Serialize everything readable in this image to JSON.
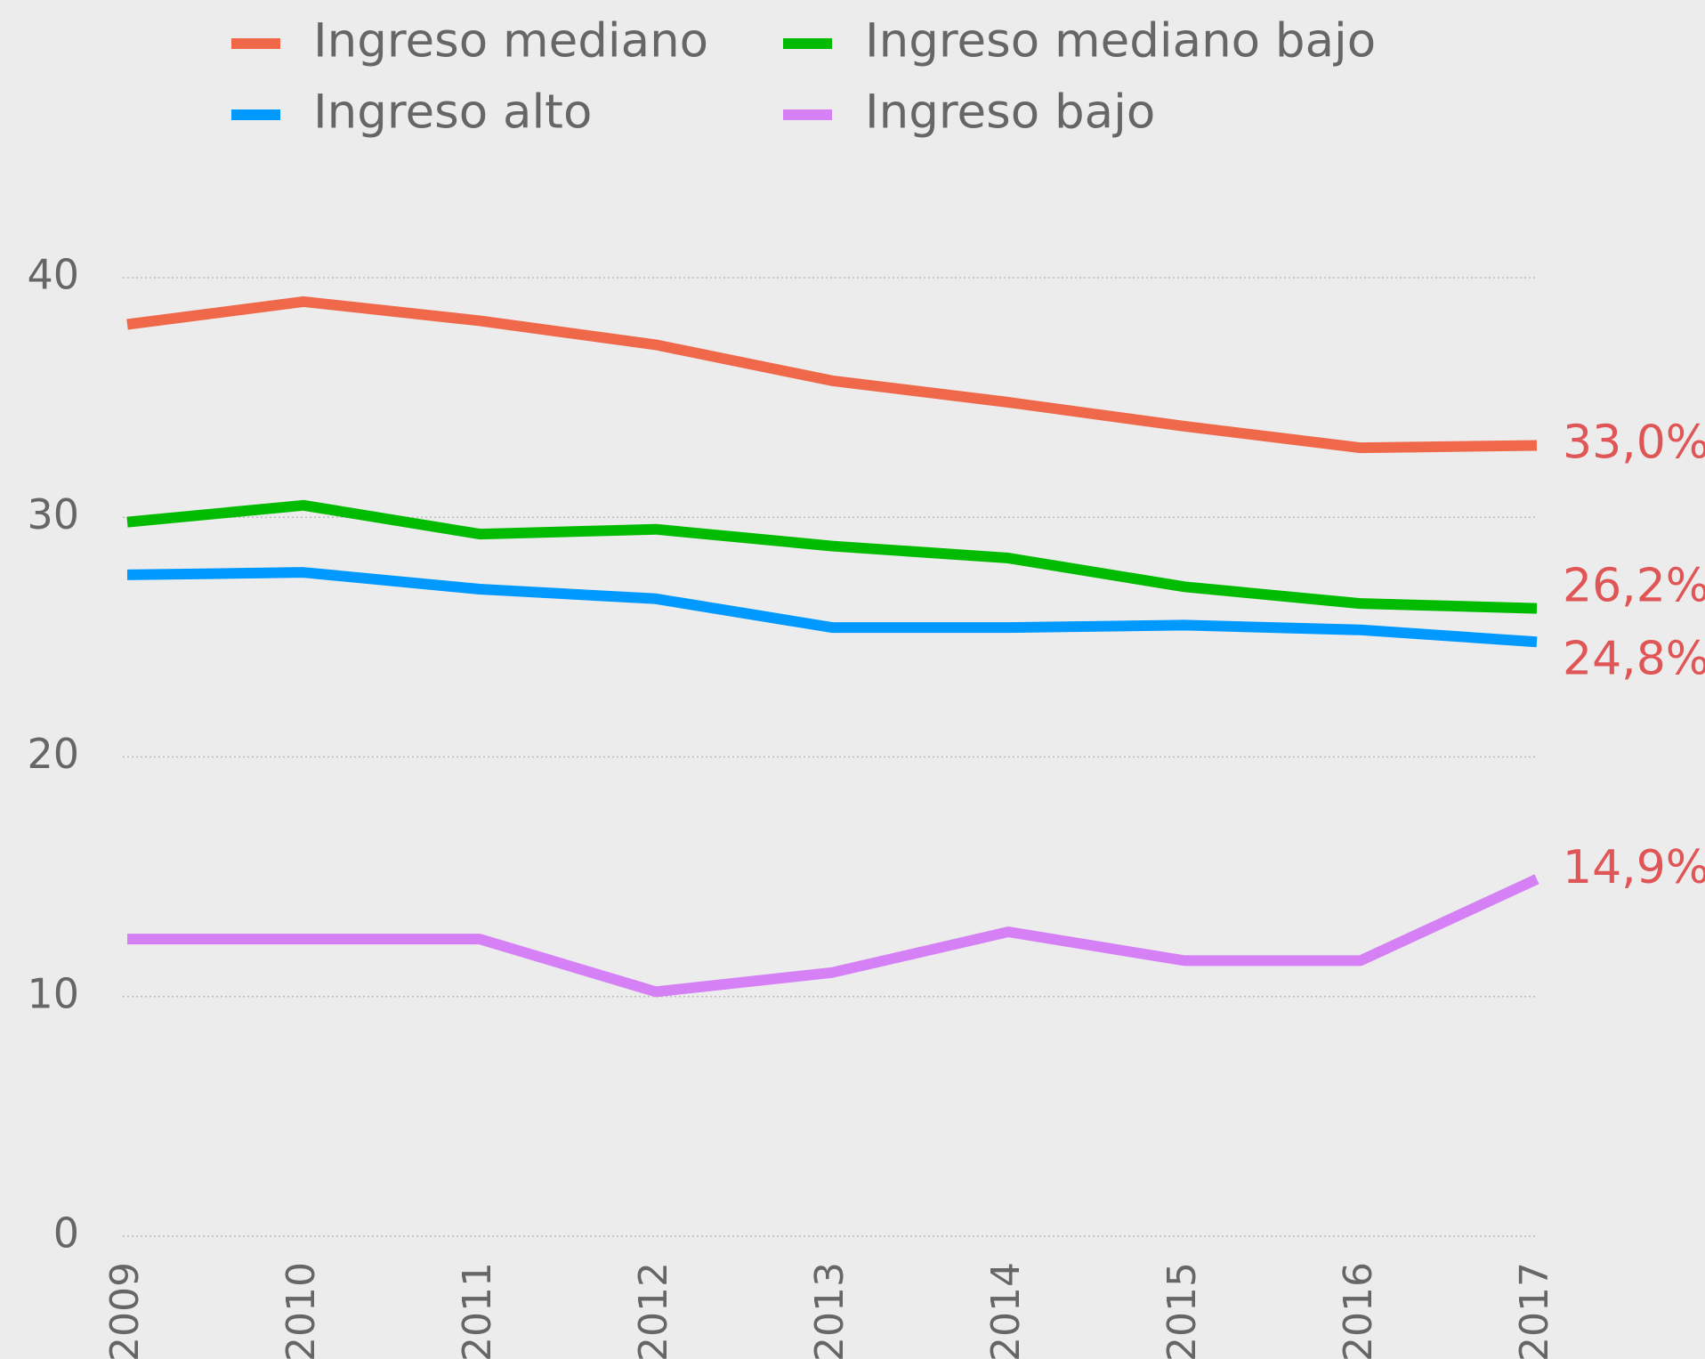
{
  "chart_data": {
    "type": "line",
    "x": [
      "2009",
      "2010",
      "2011",
      "2012",
      "2013",
      "2014",
      "2015",
      "2016",
      "2017"
    ],
    "series": [
      {
        "name": "Ingreso mediano",
        "color": "#f0684a",
        "values": [
          38.05,
          39.0,
          38.2,
          37.2,
          35.7,
          34.8,
          33.8,
          32.9,
          33.0
        ],
        "value_labels": [
          null,
          null,
          null,
          null,
          null,
          null,
          null,
          null,
          "33,0%"
        ]
      },
      {
        "name": "Ingreso mediano bajo",
        "color": "#00bb00",
        "values": [
          29.8,
          30.5,
          29.3,
          29.5,
          28.8,
          28.3,
          27.1,
          26.4,
          26.2
        ],
        "value_labels": [
          null,
          null,
          null,
          null,
          null,
          null,
          null,
          null,
          "26,2%"
        ]
      },
      {
        "name": "Ingreso alto",
        "color": "#0099ff",
        "values": [
          27.6,
          27.7,
          27.0,
          26.6,
          25.4,
          25.4,
          25.5,
          25.3,
          24.8
        ],
        "value_labels": [
          null,
          null,
          null,
          null,
          null,
          null,
          null,
          null,
          "24,8%"
        ]
      },
      {
        "name": "Ingreso bajo",
        "color": "#d580f5",
        "values": [
          12.4,
          12.4,
          12.4,
          10.2,
          11.0,
          12.7,
          11.5,
          11.5,
          14.9
        ],
        "value_labels": [
          null,
          null,
          null,
          null,
          null,
          null,
          null,
          null,
          "14,9%"
        ]
      }
    ],
    "ylim": [
      0,
      40
    ],
    "yticks": [
      0,
      10,
      20,
      30,
      40
    ],
    "grid": true,
    "value_label_color": "#e05555"
  }
}
